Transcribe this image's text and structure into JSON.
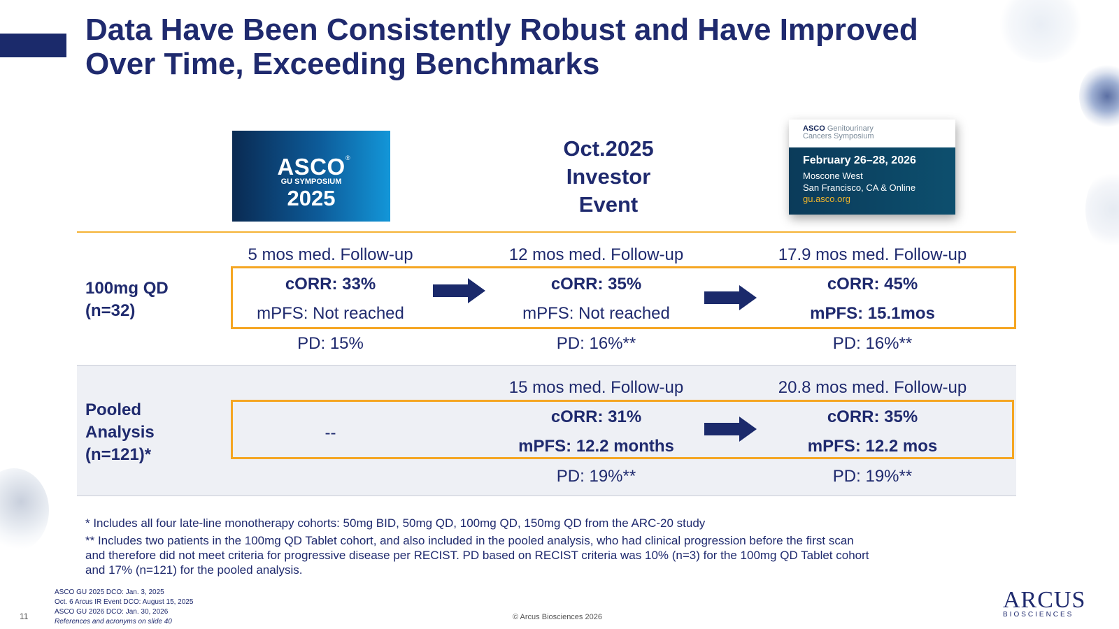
{
  "title": {
    "line1": "Data Have Been Consistently Robust and Have Improved",
    "line2": "Over Time, Exceeding Benchmarks"
  },
  "headers": {
    "col1_logo": {
      "name": "ASCO",
      "reg": "®",
      "sub": "GU SYMPOSIUM",
      "year": "2025"
    },
    "col2": [
      "Oct.2025",
      "Investor",
      "Event"
    ],
    "col3_card": {
      "org_bold": "ASCO",
      "org_rest": "Genitourinary",
      "org_line2": "Cancers Symposium",
      "dates": "February 26–28, 2026",
      "loc1": "Moscone West",
      "loc2": "San Francisco, CA & Online",
      "url": "gu.asco.org"
    }
  },
  "rows": [
    {
      "label": [
        "100mg QD",
        "(n=32)"
      ],
      "cells": [
        {
          "followup": "5 mos med. Follow-up",
          "corr": "cORR: 33%",
          "mpfs": "mPFS: Not reached",
          "pd": "PD: 15%"
        },
        {
          "followup": "12 mos med. Follow-up",
          "corr": "cORR: 35%",
          "mpfs": "mPFS: Not reached",
          "pd": "PD: 16%**"
        },
        {
          "followup": "17.9 mos med. Follow-up",
          "corr": "cORR: 45%",
          "mpfs": "mPFS: 15.1mos",
          "pd": "PD: 16%**"
        }
      ]
    },
    {
      "label": [
        "Pooled",
        "Analysis",
        "(n=121)*"
      ],
      "empty_cell": "--",
      "cells": [
        {
          "followup": "15 mos med. Follow-up",
          "corr": "cORR: 31%",
          "mpfs": "mPFS: 12.2 months",
          "pd": "PD: 19%**"
        },
        {
          "followup": "20.8 mos med. Follow-up",
          "corr": "cORR: 35%",
          "mpfs": "mPFS: 12.2 mos",
          "pd": "PD: 19%**"
        }
      ]
    }
  ],
  "footnotes": {
    "f1": "* Includes all four late-line monotherapy cohorts: 50mg BID, 50mg QD, 100mg QD, 150mg QD from the ARC-20 study",
    "f2a": "** Includes two patients in the 100mg QD Tablet cohort, and also included in the pooled analysis, who had clinical progression before the first scan",
    "f2b": "and therefore did not meet criteria for progressive disease per RECIST. PD based on RECIST criteria was 10% (n=3) for the 100mg QD Tablet cohort",
    "f2c": "and 17% (n=121) for the pooled analysis."
  },
  "references": {
    "r1": "ASCO GU 2025 DCO: Jan. 3, 2025",
    "r2": "Oct. 6 Arcus IR Event DCO: August 15, 2025",
    "r3": "ASCO GU 2026 DCO: Jan. 30, 2026",
    "r4": "References and acronyms on slide 40"
  },
  "page_number": "11",
  "copyright": "© Arcus Biosciences 2026",
  "brand": {
    "name": "ARCUS",
    "sub": "BIOSCIENCES"
  },
  "colors": {
    "navy": "#1f2a6e",
    "highlight_box": "#f5a623",
    "gold_rule": "#f5b335",
    "band": "#eef0f5"
  }
}
